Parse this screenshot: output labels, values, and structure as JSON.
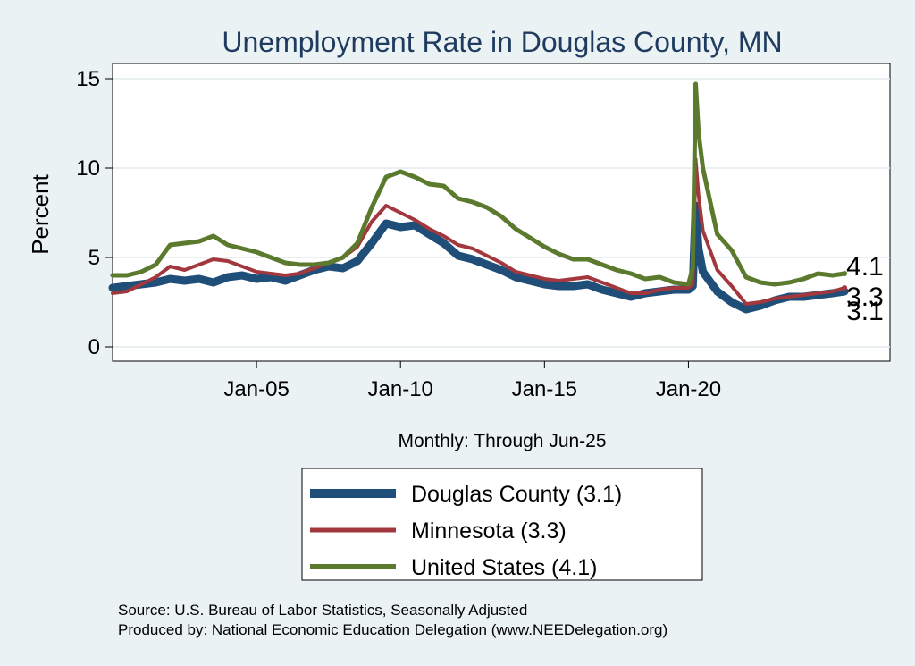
{
  "chart_data": {
    "type": "line",
    "title": "Unemployment Rate in Douglas  County, MN",
    "ylabel": "Percent",
    "xlabel": "Monthly: Through Jun-25",
    "ylim": [
      0,
      15
    ],
    "xlim": [
      2000.0,
      2027.0
    ],
    "yticks": [
      "0",
      "5",
      "10",
      "15"
    ],
    "xticks": [
      {
        "label": "Jan-05",
        "x": 2005.0
      },
      {
        "label": "Jan-10",
        "x": 2010.0
      },
      {
        "label": "Jan-15",
        "x": 2015.0
      },
      {
        "label": "Jan-20",
        "x": 2020.0
      }
    ],
    "grid": true,
    "legend_position": "bottom",
    "series": [
      {
        "name": "Douglas  County",
        "legend_label": "Douglas  County (3.1)",
        "end_label": "3.1",
        "color": "#1f4e79",
        "points": [
          [
            2000.0,
            3.3
          ],
          [
            2000.5,
            3.4
          ],
          [
            2001.0,
            3.5
          ],
          [
            2001.5,
            3.6
          ],
          [
            2002.0,
            3.8
          ],
          [
            2002.5,
            3.7
          ],
          [
            2003.0,
            3.8
          ],
          [
            2003.5,
            3.6
          ],
          [
            2004.0,
            3.9
          ],
          [
            2004.5,
            4.0
          ],
          [
            2005.0,
            3.8
          ],
          [
            2005.5,
            3.9
          ],
          [
            2006.0,
            3.7
          ],
          [
            2006.5,
            4.0
          ],
          [
            2007.0,
            4.3
          ],
          [
            2007.5,
            4.5
          ],
          [
            2008.0,
            4.4
          ],
          [
            2008.5,
            4.8
          ],
          [
            2009.0,
            5.8
          ],
          [
            2009.5,
            6.9
          ],
          [
            2010.0,
            6.7
          ],
          [
            2010.5,
            6.8
          ],
          [
            2011.0,
            6.3
          ],
          [
            2011.5,
            5.8
          ],
          [
            2012.0,
            5.1
          ],
          [
            2012.5,
            4.9
          ],
          [
            2013.0,
            4.6
          ],
          [
            2013.5,
            4.3
          ],
          [
            2014.0,
            3.9
          ],
          [
            2014.5,
            3.7
          ],
          [
            2015.0,
            3.5
          ],
          [
            2015.5,
            3.4
          ],
          [
            2016.0,
            3.4
          ],
          [
            2016.5,
            3.5
          ],
          [
            2017.0,
            3.2
          ],
          [
            2017.5,
            3.0
          ],
          [
            2018.0,
            2.8
          ],
          [
            2018.5,
            3.0
          ],
          [
            2019.0,
            3.1
          ],
          [
            2019.5,
            3.2
          ],
          [
            2020.0,
            3.2
          ],
          [
            2020.15,
            3.4
          ],
          [
            2020.25,
            7.9
          ],
          [
            2020.35,
            5.5
          ],
          [
            2020.5,
            4.2
          ],
          [
            2021.0,
            3.1
          ],
          [
            2021.5,
            2.5
          ],
          [
            2022.0,
            2.1
          ],
          [
            2022.5,
            2.3
          ],
          [
            2023.0,
            2.6
          ],
          [
            2023.5,
            2.8
          ],
          [
            2024.0,
            2.8
          ],
          [
            2024.5,
            2.9
          ],
          [
            2025.0,
            3.0
          ],
          [
            2025.42,
            3.1
          ]
        ]
      },
      {
        "name": "Minnesota",
        "legend_label": "Minnesota (3.3)",
        "end_label": "3.3",
        "color": "#a2383d",
        "points": [
          [
            2000.0,
            3.0
          ],
          [
            2000.5,
            3.1
          ],
          [
            2001.0,
            3.5
          ],
          [
            2001.5,
            3.9
          ],
          [
            2002.0,
            4.5
          ],
          [
            2002.5,
            4.3
          ],
          [
            2003.0,
            4.6
          ],
          [
            2003.5,
            4.9
          ],
          [
            2004.0,
            4.8
          ],
          [
            2004.5,
            4.5
          ],
          [
            2005.0,
            4.2
          ],
          [
            2005.5,
            4.1
          ],
          [
            2006.0,
            4.0
          ],
          [
            2006.5,
            4.1
          ],
          [
            2007.0,
            4.4
          ],
          [
            2007.5,
            4.7
          ],
          [
            2008.0,
            5.0
          ],
          [
            2008.5,
            5.6
          ],
          [
            2009.0,
            7.0
          ],
          [
            2009.5,
            7.9
          ],
          [
            2010.0,
            7.5
          ],
          [
            2010.5,
            7.1
          ],
          [
            2011.0,
            6.6
          ],
          [
            2011.5,
            6.2
          ],
          [
            2012.0,
            5.7
          ],
          [
            2012.5,
            5.5
          ],
          [
            2013.0,
            5.1
          ],
          [
            2013.5,
            4.7
          ],
          [
            2014.0,
            4.2
          ],
          [
            2014.5,
            4.0
          ],
          [
            2015.0,
            3.8
          ],
          [
            2015.5,
            3.7
          ],
          [
            2016.0,
            3.8
          ],
          [
            2016.5,
            3.9
          ],
          [
            2017.0,
            3.6
          ],
          [
            2017.5,
            3.3
          ],
          [
            2018.0,
            3.0
          ],
          [
            2018.5,
            3.0
          ],
          [
            2019.0,
            3.2
          ],
          [
            2019.5,
            3.3
          ],
          [
            2020.0,
            3.3
          ],
          [
            2020.15,
            3.5
          ],
          [
            2020.25,
            10.5
          ],
          [
            2020.35,
            8.5
          ],
          [
            2020.5,
            6.5
          ],
          [
            2021.0,
            4.3
          ],
          [
            2021.5,
            3.4
          ],
          [
            2022.0,
            2.4
          ],
          [
            2022.5,
            2.5
          ],
          [
            2023.0,
            2.7
          ],
          [
            2023.5,
            2.8
          ],
          [
            2024.0,
            2.9
          ],
          [
            2024.5,
            3.0
          ],
          [
            2025.0,
            3.1
          ],
          [
            2025.42,
            3.3
          ]
        ]
      },
      {
        "name": "United States",
        "legend_label": "United States (4.1)",
        "end_label": "4.1",
        "color": "#5b7a2e",
        "points": [
          [
            2000.0,
            4.0
          ],
          [
            2000.5,
            4.0
          ],
          [
            2001.0,
            4.2
          ],
          [
            2001.5,
            4.6
          ],
          [
            2002.0,
            5.7
          ],
          [
            2002.5,
            5.8
          ],
          [
            2003.0,
            5.9
          ],
          [
            2003.5,
            6.2
          ],
          [
            2004.0,
            5.7
          ],
          [
            2004.5,
            5.5
          ],
          [
            2005.0,
            5.3
          ],
          [
            2005.5,
            5.0
          ],
          [
            2006.0,
            4.7
          ],
          [
            2006.5,
            4.6
          ],
          [
            2007.0,
            4.6
          ],
          [
            2007.5,
            4.7
          ],
          [
            2008.0,
            5.0
          ],
          [
            2008.5,
            5.8
          ],
          [
            2009.0,
            7.8
          ],
          [
            2009.5,
            9.5
          ],
          [
            2010.0,
            9.8
          ],
          [
            2010.5,
            9.5
          ],
          [
            2011.0,
            9.1
          ],
          [
            2011.5,
            9.0
          ],
          [
            2012.0,
            8.3
          ],
          [
            2012.5,
            8.1
          ],
          [
            2013.0,
            7.8
          ],
          [
            2013.5,
            7.3
          ],
          [
            2014.0,
            6.6
          ],
          [
            2014.5,
            6.1
          ],
          [
            2015.0,
            5.6
          ],
          [
            2015.5,
            5.2
          ],
          [
            2016.0,
            4.9
          ],
          [
            2016.5,
            4.9
          ],
          [
            2017.0,
            4.6
          ],
          [
            2017.5,
            4.3
          ],
          [
            2018.0,
            4.1
          ],
          [
            2018.5,
            3.8
          ],
          [
            2019.0,
            3.9
          ],
          [
            2019.5,
            3.6
          ],
          [
            2020.0,
            3.5
          ],
          [
            2020.15,
            4.4
          ],
          [
            2020.25,
            14.7
          ],
          [
            2020.35,
            12.0
          ],
          [
            2020.5,
            10.0
          ],
          [
            2021.0,
            6.3
          ],
          [
            2021.5,
            5.4
          ],
          [
            2022.0,
            3.9
          ],
          [
            2022.5,
            3.6
          ],
          [
            2023.0,
            3.5
          ],
          [
            2023.5,
            3.6
          ],
          [
            2024.0,
            3.8
          ],
          [
            2024.5,
            4.1
          ],
          [
            2025.0,
            4.0
          ],
          [
            2025.42,
            4.1
          ]
        ]
      }
    ]
  },
  "footer": {
    "source": "Source: U.S. Bureau of Labor Statistics, Seasonally Adjusted",
    "produced_by": "Produced by: National Economic Education Delegation (www.NEEDelegation.org)"
  }
}
